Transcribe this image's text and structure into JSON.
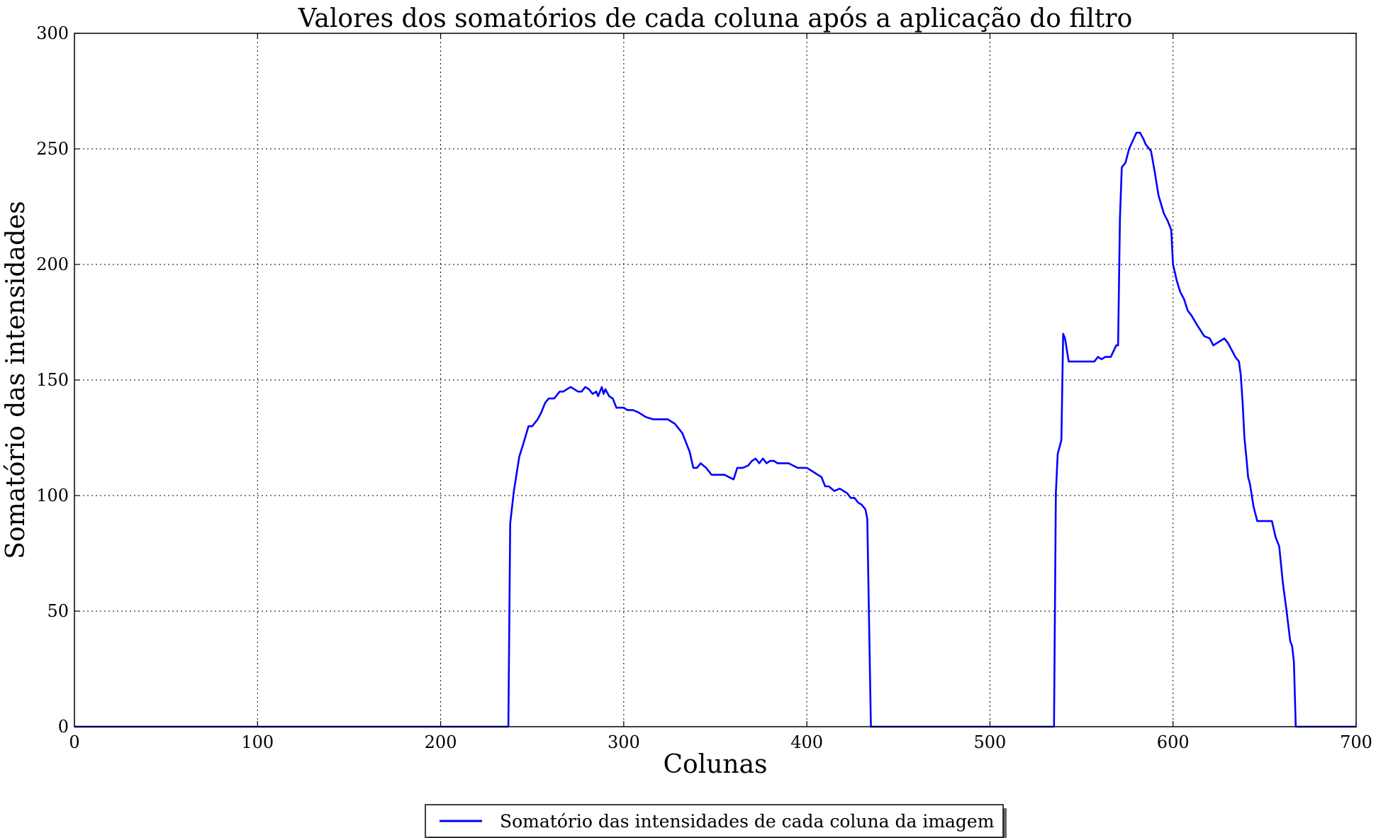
{
  "chart_data": {
    "type": "line",
    "title": "Valores dos somatórios de cada coluna após a aplicação do filtro",
    "xlabel": "Colunas",
    "ylabel": "Somatório das intensidades",
    "xlim": [
      0,
      700
    ],
    "ylim": [
      0,
      300
    ],
    "xticks": [
      0,
      100,
      200,
      300,
      400,
      500,
      600,
      700
    ],
    "yticks": [
      0,
      50,
      100,
      150,
      200,
      250,
      300
    ],
    "grid": true,
    "legend_position": "below",
    "series": [
      {
        "name": "Somatório das intensidades de cada coluna da imagem",
        "color": "#0000ff",
        "x": [
          0,
          237,
          238,
          240,
          243,
          245,
          248,
          250,
          253,
          255,
          257,
          259,
          262,
          265,
          267,
          269,
          271,
          273,
          275,
          277,
          279,
          281,
          283,
          285,
          286,
          287,
          288,
          289,
          290,
          292,
          294,
          296,
          298,
          300,
          302,
          305,
          308,
          312,
          316,
          320,
          324,
          328,
          332,
          336,
          338,
          340,
          342,
          345,
          348,
          350,
          355,
          360,
          362,
          365,
          368,
          370,
          372,
          374,
          376,
          378,
          380,
          382,
          384,
          390,
          395,
          400,
          402,
          404,
          406,
          408,
          410,
          412,
          415,
          418,
          420,
          422,
          424,
          426,
          428,
          430,
          432,
          433,
          435,
          500,
          535,
          536,
          537,
          539,
          540,
          541,
          543,
          545,
          550,
          557,
          559,
          561,
          563,
          566,
          569,
          570,
          571,
          572,
          574,
          576,
          580,
          582,
          584,
          585,
          588,
          590,
          592,
          595,
          597,
          599,
          600,
          602,
          604,
          606,
          608,
          610,
          613,
          617,
          620,
          622,
          624,
          626,
          628,
          630,
          632,
          634,
          636,
          637,
          638,
          639,
          640,
          641,
          642,
          644,
          646,
          650,
          654,
          656,
          658,
          660,
          662,
          664,
          665,
          666,
          667,
          680,
          700
        ],
        "y": [
          0,
          0,
          88,
          102,
          117,
          122,
          130,
          130,
          133,
          136,
          140,
          142,
          142,
          145,
          145,
          146,
          147,
          146,
          145,
          145,
          147,
          146,
          144,
          145,
          143,
          145,
          147,
          144,
          146,
          143,
          142,
          138,
          138,
          138,
          137,
          137,
          136,
          134,
          133,
          133,
          133,
          131,
          127,
          119,
          112,
          112,
          114,
          112,
          109,
          109,
          109,
          107,
          112,
          112,
          113,
          115,
          116,
          114,
          116,
          114,
          115,
          115,
          114,
          114,
          112,
          112,
          111,
          110,
          109,
          108,
          104,
          104,
          102,
          103,
          102,
          101,
          99,
          99,
          97,
          96,
          94,
          90,
          0,
          0,
          0,
          101,
          118,
          124,
          170,
          168,
          158,
          158,
          158,
          158,
          160,
          159,
          160,
          160,
          165,
          165,
          220,
          242,
          244,
          250,
          257,
          257,
          254,
          252,
          249,
          240,
          230,
          222,
          219,
          215,
          200,
          193,
          188,
          185,
          180,
          178,
          174,
          169,
          168,
          165,
          166,
          167,
          168,
          166,
          163,
          160,
          158,
          152,
          140,
          125,
          117,
          108,
          105,
          95,
          89,
          89,
          89,
          82,
          78,
          62,
          50,
          37,
          35,
          28,
          0,
          0,
          0
        ]
      }
    ]
  }
}
